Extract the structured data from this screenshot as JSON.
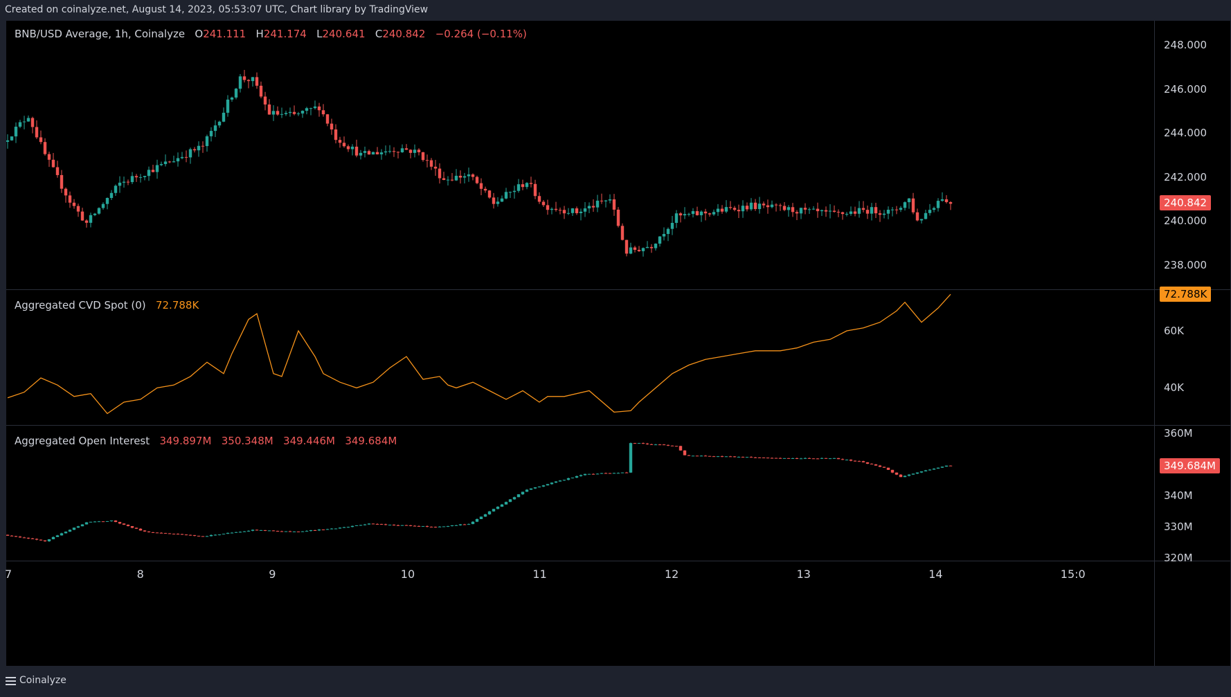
{
  "header": {
    "caption": "Created on coinalyze.net, August 14, 2023, 05:53:07 UTC, Chart library by TradingView"
  },
  "footer": {
    "brand": "Coinalyze"
  },
  "colors": {
    "up": "#26a69a",
    "down": "#ef5350",
    "cvd": "#f7931a",
    "background": "#000000",
    "frame": "#1e222d"
  },
  "chart_data": [
    {
      "type": "candlestick",
      "title": "BNB/USD Average, 1h, Coinalyze",
      "ohlc_label": {
        "o_key": "O",
        "o": "241.111",
        "h_key": "H",
        "h": "241.174",
        "l_key": "L",
        "l": "240.641",
        "c_key": "C",
        "c": "240.842",
        "change": "−0.264 (−0.11%)"
      },
      "last_value": "240.842",
      "y_ticks": [
        "248.000",
        "246.000",
        "244.000",
        "242.000",
        "240.000",
        "238.000"
      ],
      "ylim": [
        236.9,
        249.1
      ],
      "x_ticks": [
        "7",
        "8",
        "9",
        "10",
        "11",
        "12",
        "13",
        "14",
        "15:0"
      ],
      "anchors": [
        [
          0,
          243.6
        ],
        [
          6,
          244.8
        ],
        [
          10,
          243.0
        ],
        [
          16,
          240.9
        ],
        [
          20,
          239.9
        ],
        [
          28,
          241.7
        ],
        [
          40,
          242.7
        ],
        [
          48,
          243.4
        ],
        [
          53,
          245.0
        ],
        [
          57,
          246.5
        ],
        [
          60,
          246.4
        ],
        [
          64,
          244.9
        ],
        [
          70,
          244.8
        ],
        [
          76,
          245.2
        ],
        [
          80,
          243.8
        ],
        [
          86,
          243.0
        ],
        [
          96,
          243.3
        ],
        [
          100,
          243.1
        ],
        [
          106,
          241.9
        ],
        [
          112,
          242.1
        ],
        [
          118,
          240.8
        ],
        [
          126,
          241.8
        ],
        [
          130,
          240.7
        ],
        [
          138,
          240.4
        ],
        [
          146,
          241.0
        ],
        [
          150,
          238.6
        ],
        [
          156,
          238.9
        ],
        [
          162,
          240.2
        ],
        [
          170,
          240.4
        ],
        [
          180,
          240.7
        ],
        [
          190,
          240.5
        ],
        [
          200,
          240.3
        ],
        [
          208,
          240.5
        ],
        [
          214,
          240.4
        ],
        [
          218,
          241.0
        ],
        [
          220,
          240.0
        ],
        [
          226,
          241.1
        ],
        [
          227,
          240.84
        ]
      ],
      "volatility": 0.55
    },
    {
      "type": "line",
      "title": "Aggregated CVD Spot (0)",
      "last_value": "72.788K",
      "y_ticks": [
        "60K",
        "40K"
      ],
      "ylim": [
        27,
        74.3
      ],
      "series": [
        {
          "x": [
            0,
            4,
            8,
            12,
            16,
            20,
            24,
            28,
            32,
            36,
            40,
            44,
            48,
            52,
            54,
            56,
            58,
            60,
            64,
            66,
            70,
            74,
            76,
            80,
            84,
            88,
            92,
            96,
            100,
            104,
            106,
            108,
            112,
            116,
            120,
            124,
            128,
            130,
            134,
            140,
            146,
            150,
            152,
            156,
            160,
            164,
            168,
            172,
            176,
            180,
            186,
            190,
            194,
            198,
            202,
            206,
            210,
            214,
            216,
            220,
            224,
            227
          ],
          "y": [
            36.5,
            38.5,
            43.5,
            41,
            37,
            38,
            31,
            35,
            36,
            40,
            41,
            44,
            49,
            45,
            52,
            58,
            64,
            66,
            45,
            44,
            60,
            51,
            45,
            42,
            40,
            42,
            47,
            51,
            43,
            44,
            41,
            40,
            42,
            39,
            36,
            39,
            35,
            37,
            37,
            39,
            31.5,
            32,
            35,
            40,
            45,
            48,
            50,
            51,
            52,
            53,
            53,
            54,
            56,
            57,
            60,
            61,
            63,
            67,
            70,
            63,
            68,
            72.8
          ]
        }
      ]
    },
    {
      "type": "candlestick",
      "title": "Aggregated Open Interest",
      "ohlc_label": {
        "o": "349.897M",
        "h": "350.348M",
        "l": "349.446M",
        "c": "349.684M"
      },
      "last_value": "349.684M",
      "y_ticks": [
        "360M",
        "340M",
        "330M",
        "320M"
      ],
      "ylim": [
        319.2,
        362.5
      ],
      "anchors": [
        [
          0,
          327.5
        ],
        [
          10,
          325.5
        ],
        [
          20,
          331.5
        ],
        [
          26,
          332
        ],
        [
          34,
          328.5
        ],
        [
          48,
          327
        ],
        [
          60,
          329
        ],
        [
          70,
          328.5
        ],
        [
          80,
          329.5
        ],
        [
          88,
          331
        ],
        [
          104,
          330
        ],
        [
          112,
          331
        ],
        [
          126,
          342
        ],
        [
          140,
          347
        ],
        [
          150,
          347.5
        ],
        [
          151,
          357
        ],
        [
          162,
          356
        ],
        [
          164,
          353
        ],
        [
          190,
          352
        ],
        [
          200,
          352
        ],
        [
          206,
          351
        ],
        [
          212,
          349
        ],
        [
          216,
          346
        ],
        [
          220,
          347.5
        ],
        [
          227,
          349.68
        ]
      ],
      "volatility": 0.35
    }
  ]
}
